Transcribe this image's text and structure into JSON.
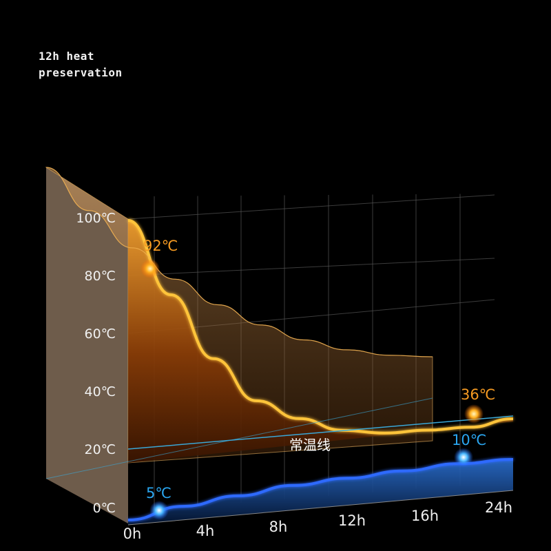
{
  "title_lines": [
    "12h heat",
    "preservation"
  ],
  "colors": {
    "background": "#000000",
    "hot": "#f5a623",
    "hot_fill": "#7a3a08",
    "cold": "#1e5bff",
    "cold_fill": "#123a78",
    "ambient": "#3aa8d8",
    "grid": "#5a5a5a"
  },
  "chart_data": {
    "type": "area",
    "style": "3d perspective",
    "x_ticks": [
      "0h",
      "4h",
      "8h",
      "12h",
      "16h",
      "24h"
    ],
    "y_ticks": [
      "0℃",
      "20℃",
      "40℃",
      "60℃",
      "80℃",
      "100℃"
    ],
    "ylim": [
      0,
      100
    ],
    "grid": true,
    "series": [
      {
        "role": "hot",
        "values": [
          100,
          75,
          53,
          38,
          31,
          26,
          24,
          24,
          24,
          26
        ],
        "highlight_points": [
          {
            "x": 1,
            "y": 92,
            "label": "92℃"
          },
          {
            "x": 22,
            "y": 36,
            "label": "36℃"
          }
        ]
      },
      {
        "role": "cold",
        "values": [
          0,
          3,
          5,
          7,
          8,
          9,
          10,
          10
        ],
        "highlight_points": [
          {
            "x": 1,
            "y": 5,
            "label": "5℃"
          },
          {
            "x": 22,
            "y": 10,
            "label": "10℃"
          }
        ]
      },
      {
        "role": "ambient",
        "label": "常温线",
        "values": [
          20,
          25
        ]
      }
    ]
  }
}
